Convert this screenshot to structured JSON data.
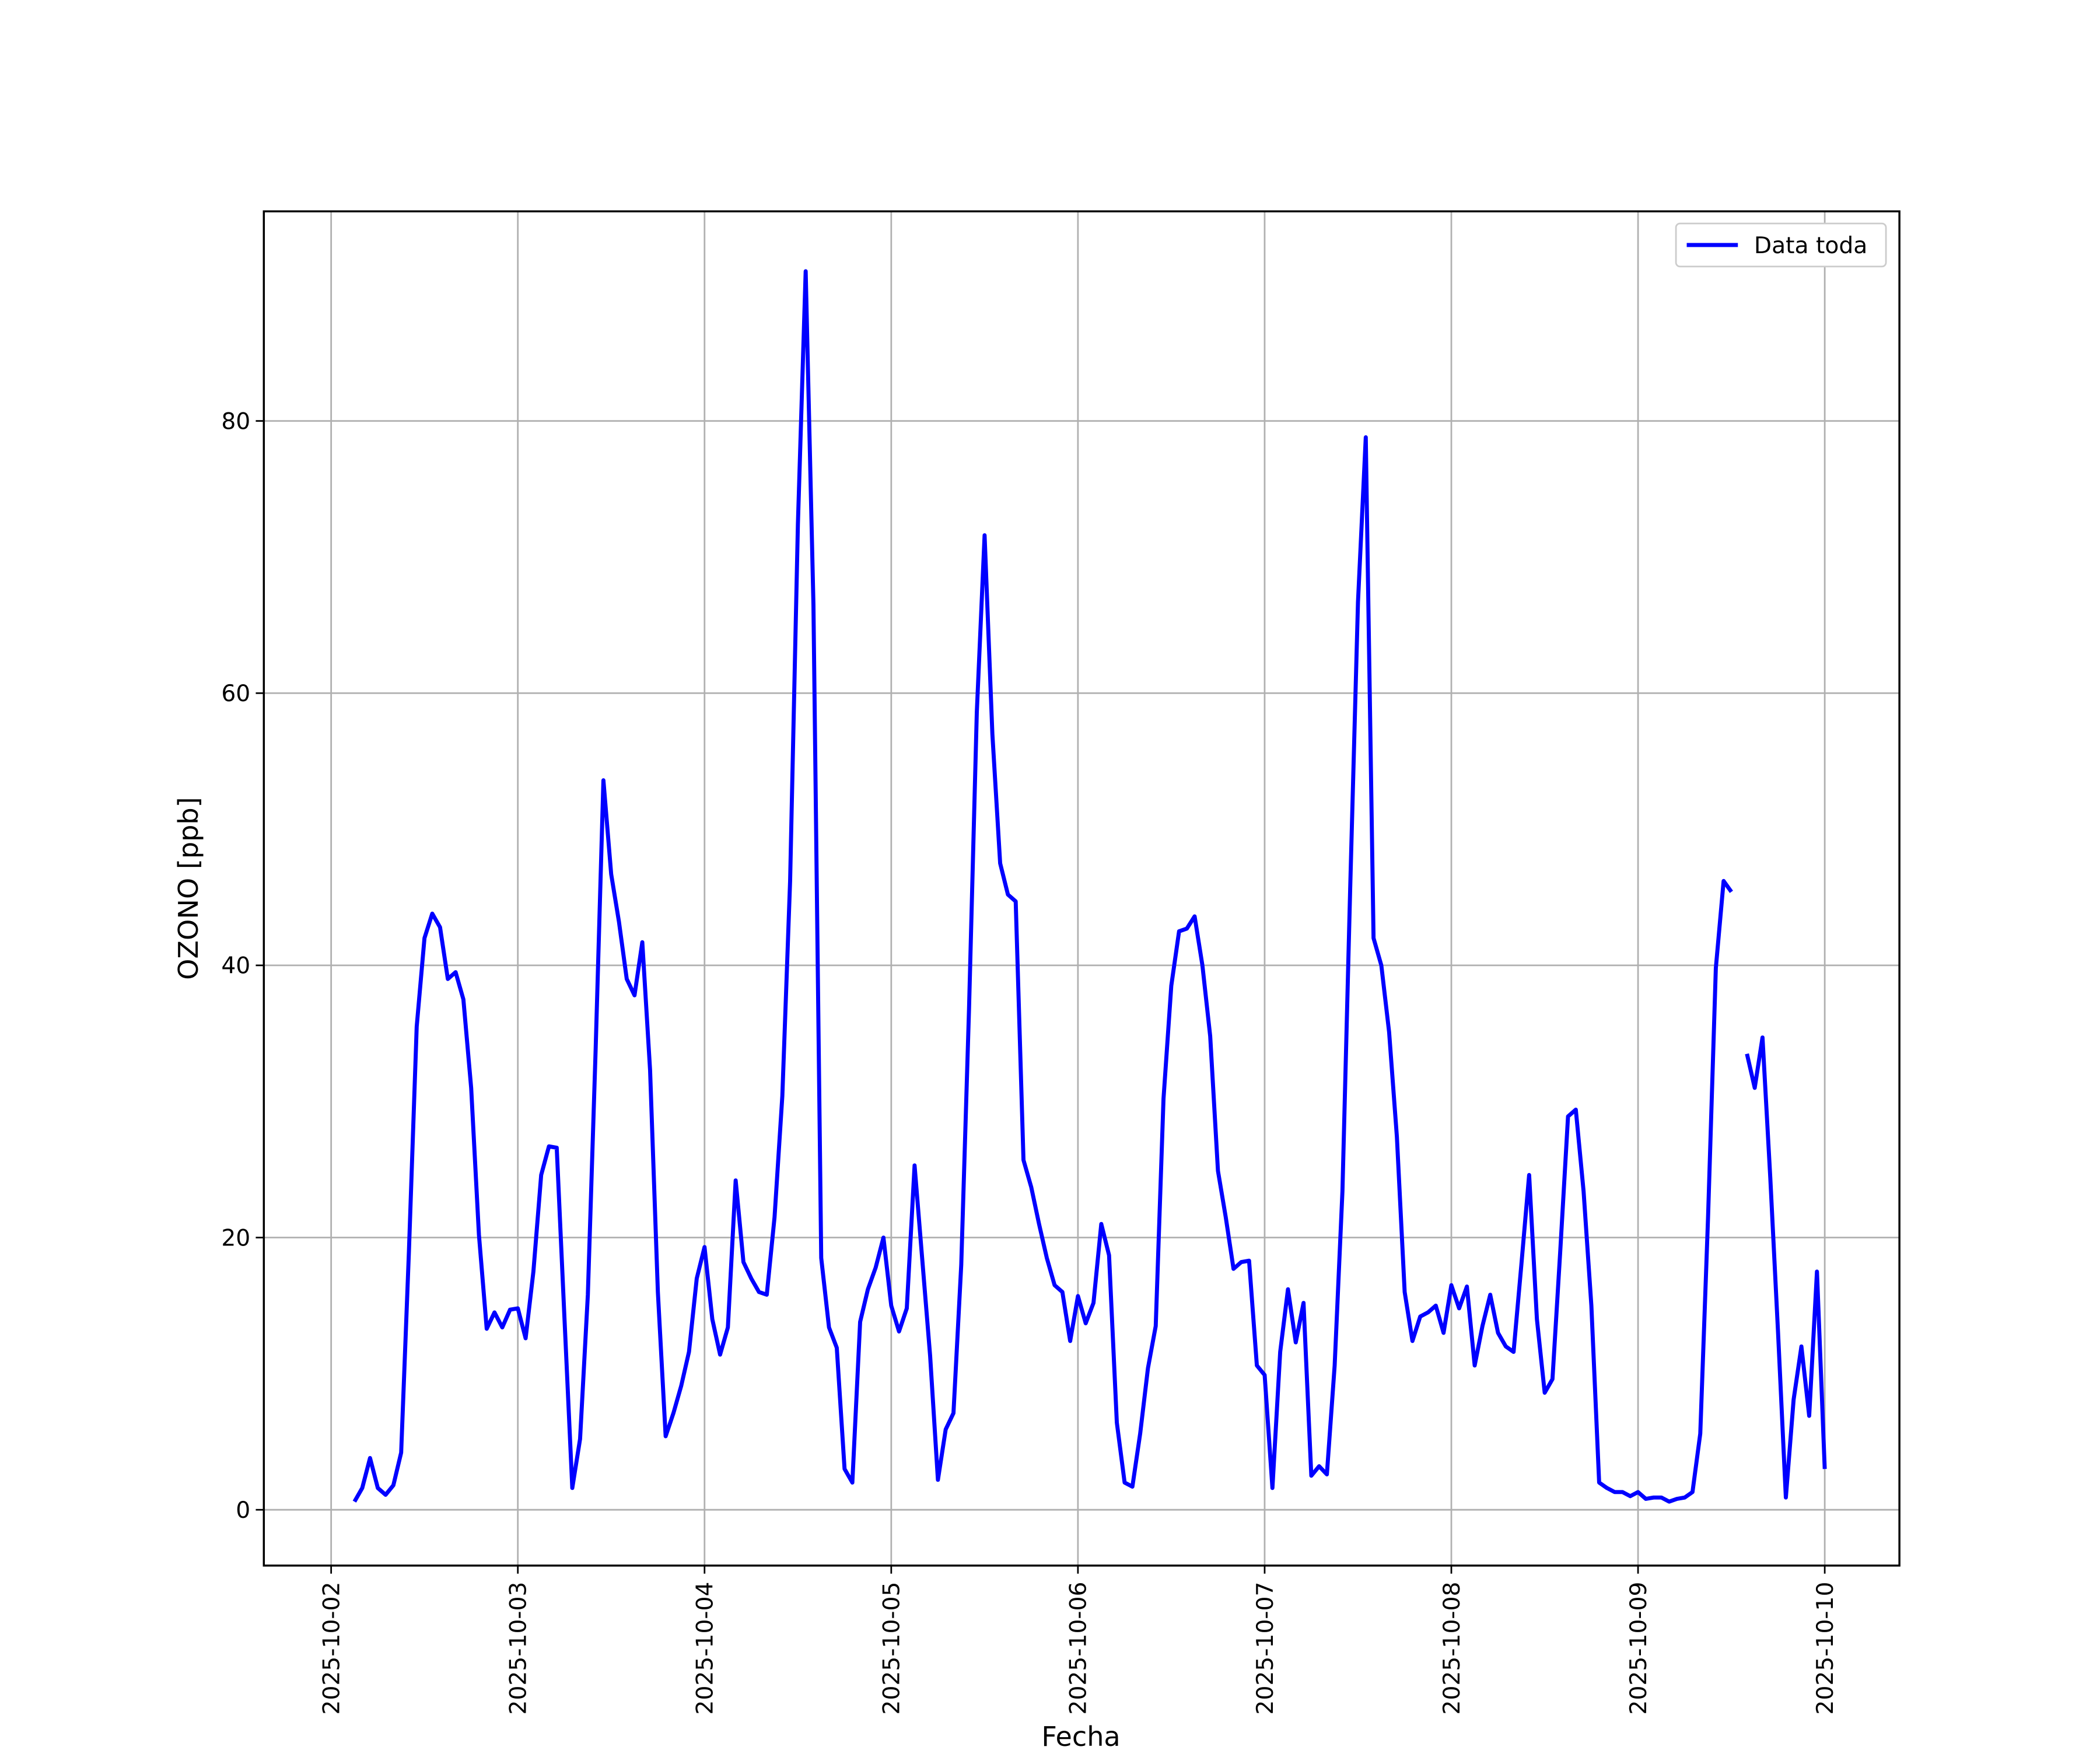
{
  "chart_data": {
    "type": "line",
    "xlabel": "Fecha",
    "ylabel": "OZONO [ppb]",
    "x": [
      "2025-10-02 03:00",
      "2025-10-02 04:00",
      "2025-10-02 05:00",
      "2025-10-02 06:00",
      "2025-10-02 07:00",
      "2025-10-02 08:00",
      "2025-10-02 09:00",
      "2025-10-02 10:00",
      "2025-10-02 11:00",
      "2025-10-02 12:00",
      "2025-10-02 13:00",
      "2025-10-02 14:00",
      "2025-10-02 15:00",
      "2025-10-02 16:00",
      "2025-10-02 17:00",
      "2025-10-02 18:00",
      "2025-10-02 19:00",
      "2025-10-02 20:00",
      "2025-10-02 21:00",
      "2025-10-02 22:00",
      "2025-10-02 23:00",
      "2025-10-03 00:00",
      "2025-10-03 01:00",
      "2025-10-03 02:00",
      "2025-10-03 03:00",
      "2025-10-03 04:00",
      "2025-10-03 05:00",
      "2025-10-03 06:00",
      "2025-10-03 07:00",
      "2025-10-03 08:00",
      "2025-10-03 09:00",
      "2025-10-03 10:00",
      "2025-10-03 11:00",
      "2025-10-03 12:00",
      "2025-10-03 13:00",
      "2025-10-03 14:00",
      "2025-10-03 15:00",
      "2025-10-03 16:00",
      "2025-10-03 17:00",
      "2025-10-03 18:00",
      "2025-10-03 19:00",
      "2025-10-03 20:00",
      "2025-10-03 21:00",
      "2025-10-03 22:00",
      "2025-10-03 23:00",
      "2025-10-04 00:00",
      "2025-10-04 01:00",
      "2025-10-04 02:00",
      "2025-10-04 03:00",
      "2025-10-04 04:00",
      "2025-10-04 05:00",
      "2025-10-04 06:00",
      "2025-10-04 07:00",
      "2025-10-04 08:00",
      "2025-10-04 09:00",
      "2025-10-04 10:00",
      "2025-10-04 11:00",
      "2025-10-04 12:00",
      "2025-10-04 13:00",
      "2025-10-04 14:00",
      "2025-10-04 15:00",
      "2025-10-04 16:00",
      "2025-10-04 17:00",
      "2025-10-04 18:00",
      "2025-10-04 19:00",
      "2025-10-04 20:00",
      "2025-10-04 21:00",
      "2025-10-04 22:00",
      "2025-10-04 23:00",
      "2025-10-05 00:00",
      "2025-10-05 01:00",
      "2025-10-05 02:00",
      "2025-10-05 03:00",
      "2025-10-05 04:00",
      "2025-10-05 05:00",
      "2025-10-05 06:00",
      "2025-10-05 07:00",
      "2025-10-05 08:00",
      "2025-10-05 09:00",
      "2025-10-05 10:00",
      "2025-10-05 11:00",
      "2025-10-05 12:00",
      "2025-10-05 13:00",
      "2025-10-05 14:00",
      "2025-10-05 15:00",
      "2025-10-05 16:00",
      "2025-10-05 17:00",
      "2025-10-05 18:00",
      "2025-10-05 19:00",
      "2025-10-05 20:00",
      "2025-10-05 21:00",
      "2025-10-05 22:00",
      "2025-10-05 23:00",
      "2025-10-06 00:00",
      "2025-10-06 01:00",
      "2025-10-06 02:00",
      "2025-10-06 03:00",
      "2025-10-06 04:00",
      "2025-10-06 05:00",
      "2025-10-06 06:00",
      "2025-10-06 07:00",
      "2025-10-06 08:00",
      "2025-10-06 09:00",
      "2025-10-06 10:00",
      "2025-10-06 11:00",
      "2025-10-06 12:00",
      "2025-10-06 13:00",
      "2025-10-06 14:00",
      "2025-10-06 15:00",
      "2025-10-06 16:00",
      "2025-10-06 17:00",
      "2025-10-06 18:00",
      "2025-10-06 19:00",
      "2025-10-06 20:00",
      "2025-10-06 21:00",
      "2025-10-06 22:00",
      "2025-10-06 23:00",
      "2025-10-07 00:00",
      "2025-10-07 01:00",
      "2025-10-07 02:00",
      "2025-10-07 03:00",
      "2025-10-07 04:00",
      "2025-10-07 05:00",
      "2025-10-07 06:00",
      "2025-10-07 07:00",
      "2025-10-07 08:00",
      "2025-10-07 09:00",
      "2025-10-07 10:00",
      "2025-10-07 11:00",
      "2025-10-07 12:00",
      "2025-10-07 13:00",
      "2025-10-07 14:00",
      "2025-10-07 15:00",
      "2025-10-07 16:00",
      "2025-10-07 17:00",
      "2025-10-07 18:00",
      "2025-10-07 19:00",
      "2025-10-07 20:00",
      "2025-10-07 21:00",
      "2025-10-07 22:00",
      "2025-10-07 23:00",
      "2025-10-08 00:00",
      "2025-10-08 01:00",
      "2025-10-08 02:00",
      "2025-10-08 03:00",
      "2025-10-08 04:00",
      "2025-10-08 05:00",
      "2025-10-08 06:00",
      "2025-10-08 07:00",
      "2025-10-08 08:00",
      "2025-10-08 09:00",
      "2025-10-08 10:00",
      "2025-10-08 11:00",
      "2025-10-08 12:00",
      "2025-10-08 13:00",
      "2025-10-08 14:00",
      "2025-10-08 15:00",
      "2025-10-08 16:00",
      "2025-10-08 17:00",
      "2025-10-08 18:00",
      "2025-10-08 19:00",
      "2025-10-08 20:00",
      "2025-10-08 21:00",
      "2025-10-08 22:00",
      "2025-10-08 23:00",
      "2025-10-09 00:00",
      "2025-10-09 01:00",
      "2025-10-09 02:00",
      "2025-10-09 03:00",
      "2025-10-09 04:00",
      "2025-10-09 05:00",
      "2025-10-09 06:00",
      "2025-10-09 07:00",
      "2025-10-09 08:00",
      "2025-10-09 09:00",
      "2025-10-09 10:00",
      "2025-10-09 11:00",
      "2025-10-09 12:00",
      "2025-10-09 13:00",
      "2025-10-09 14:00",
      "2025-10-09 15:00",
      "2025-10-09 16:00",
      "2025-10-09 17:00",
      "2025-10-09 18:00",
      "2025-10-09 19:00",
      "2025-10-09 20:00",
      "2025-10-09 21:00",
      "2025-10-09 22:00",
      "2025-10-09 23:00",
      "2025-10-10 00:00"
    ],
    "series": [
      {
        "name": "Data toda",
        "color": "#0000ff",
        "values": [
          0.6,
          1.6,
          3.8,
          1.6,
          1.1,
          1.8,
          4.2,
          19,
          35.5,
          42,
          43.8,
          42.8,
          39,
          39.5,
          37.5,
          31,
          20.2,
          13.3,
          14.5,
          13.4,
          14.7,
          14.8,
          12.6,
          17.5,
          24.6,
          26.7,
          26.6,
          14,
          1.6,
          5.2,
          15.8,
          33.8,
          53.6,
          46.7,
          43.2,
          39,
          37.8,
          41.7,
          32.3,
          16,
          5.4,
          7.1,
          9.1,
          11.6,
          17,
          19.3,
          14,
          11.4,
          13.4,
          24.2,
          18.2,
          17,
          16,
          15.8,
          21.5,
          30.4,
          46.2,
          72.4,
          91,
          66.5,
          18.5,
          13.4,
          11.9,
          3,
          2,
          13.8,
          16.2,
          17.8,
          20,
          15,
          13.1,
          14.8,
          25.3,
          18.3,
          11.3,
          2.2,
          5.9,
          7.1,
          18,
          36.8,
          58.6,
          71.6,
          57,
          47.5,
          45.2,
          44.7,
          25.7,
          23.7,
          21,
          18.5,
          16.5,
          16,
          12.4,
          15.7,
          13.7,
          15.2,
          21,
          18.7,
          6.4,
          2,
          1.7,
          5.6,
          10.4,
          13.5,
          30.2,
          38.5,
          42.5,
          42.7,
          43.6,
          40,
          34.8,
          24.9,
          21.5,
          17.7,
          18.2,
          18.3,
          10.6,
          9.9,
          1.6,
          11.6,
          16.2,
          12.3,
          15.2,
          2.5,
          3.2,
          2.6,
          10.6,
          23.4,
          45.7,
          66.7,
          78.8,
          42,
          40,
          35.1,
          27.4,
          16,
          12.4,
          14.2,
          14.5,
          15,
          13,
          16.5,
          14.8,
          16.4,
          10.6,
          13.5,
          15.8,
          13,
          12,
          11.6,
          18,
          24.6,
          14,
          8.6,
          9.6,
          19,
          28.9,
          29.4,
          23.4,
          15,
          2,
          1.6,
          1.3,
          1.3,
          1,
          1.3,
          0.8,
          0.9,
          0.9,
          0.6,
          0.8,
          0.9,
          1.3,
          5.6,
          21.5,
          39.8,
          46.2,
          45.4,
          null,
          33.5,
          31,
          34.7,
          24.4,
          13,
          0.9,
          8.1,
          12,
          6.9,
          17.5,
          3
        ]
      }
    ],
    "xlim": [
      "2025-10-01 15:21",
      "2025-10-10 09:36"
    ],
    "xticks": [
      "2025-10-02",
      "2025-10-03",
      "2025-10-04",
      "2025-10-05",
      "2025-10-06",
      "2025-10-07",
      "2025-10-08",
      "2025-10-09",
      "2025-10-10"
    ],
    "ylim": [
      -4.1,
      95.4
    ],
    "yticks": [
      0,
      20,
      40,
      60,
      80
    ],
    "grid": true,
    "legend": "upper right"
  }
}
